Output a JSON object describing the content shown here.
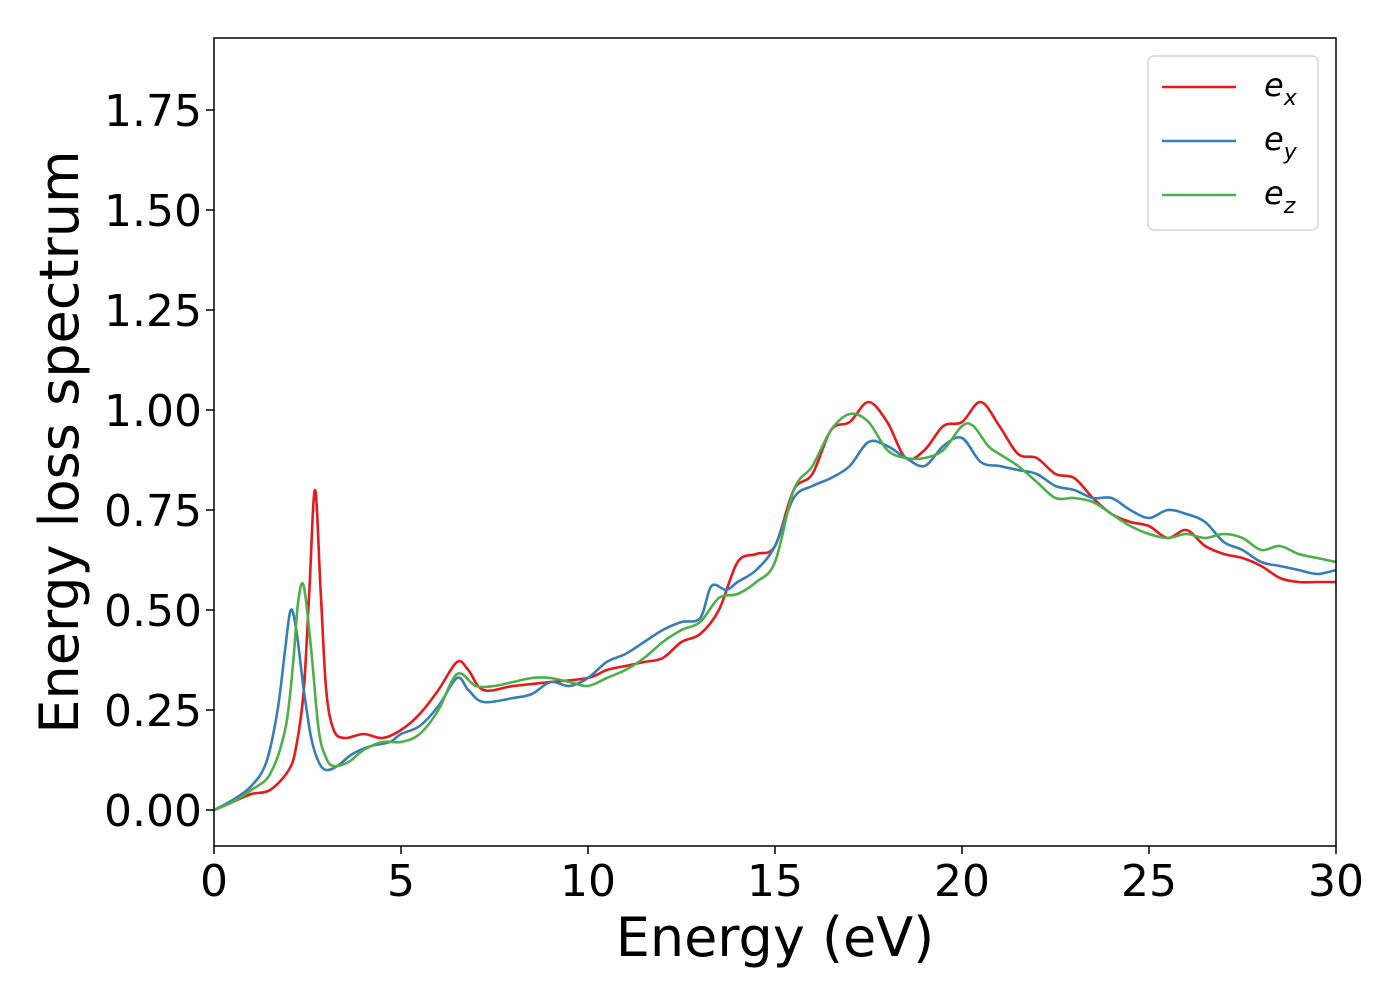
{
  "chart_data": {
    "type": "line",
    "title": "",
    "xlabel": "Energy (eV)",
    "ylabel": "Energy loss spectrum",
    "xlim": [
      0,
      30
    ],
    "ylim": [
      -0.09,
      1.93
    ],
    "xticks": [
      0,
      5,
      10,
      15,
      20,
      25,
      30
    ],
    "xtick_labels": [
      "0",
      "5",
      "10",
      "15",
      "20",
      "25",
      "30"
    ],
    "yticks": [
      0.0,
      0.25,
      0.5,
      0.75,
      1.0,
      1.25,
      1.5,
      1.75
    ],
    "ytick_labels": [
      "0.00",
      "0.25",
      "0.50",
      "0.75",
      "1.00",
      "1.25",
      "1.50",
      "1.75"
    ],
    "grid": false,
    "legend_position": "top-right",
    "series": [
      {
        "name": "e_x",
        "legend_base": "e",
        "legend_sub": "x",
        "color": "#e41a1c",
        "x": [
          0,
          0.5,
          1.0,
          1.5,
          2.0,
          2.2,
          2.4,
          2.55,
          2.7,
          2.85,
          3.0,
          3.2,
          3.5,
          4.0,
          4.5,
          5.0,
          5.5,
          6.0,
          6.5,
          6.8,
          7.2,
          8.0,
          9.0,
          10.0,
          10.5,
          11.0,
          11.5,
          12.0,
          12.5,
          13.0,
          13.5,
          14.0,
          14.5,
          15.0,
          15.5,
          16.0,
          16.5,
          17.0,
          17.5,
          18.0,
          18.5,
          19.0,
          19.5,
          20.0,
          20.5,
          21.0,
          21.5,
          22.0,
          22.5,
          23.0,
          23.5,
          24.0,
          24.5,
          25.0,
          25.5,
          26.0,
          26.5,
          27.0,
          27.5,
          28.0,
          28.5,
          29.0,
          29.5,
          30.0
        ],
        "y": [
          0.0,
          0.02,
          0.04,
          0.05,
          0.1,
          0.16,
          0.3,
          0.55,
          0.8,
          0.55,
          0.3,
          0.2,
          0.18,
          0.19,
          0.18,
          0.2,
          0.24,
          0.3,
          0.37,
          0.35,
          0.3,
          0.31,
          0.32,
          0.33,
          0.35,
          0.36,
          0.37,
          0.38,
          0.42,
          0.44,
          0.5,
          0.62,
          0.64,
          0.66,
          0.8,
          0.84,
          0.95,
          0.97,
          1.02,
          0.97,
          0.88,
          0.9,
          0.96,
          0.97,
          1.02,
          0.96,
          0.89,
          0.88,
          0.84,
          0.83,
          0.78,
          0.74,
          0.72,
          0.71,
          0.68,
          0.7,
          0.66,
          0.64,
          0.63,
          0.61,
          0.58,
          0.57,
          0.57,
          0.57
        ]
      },
      {
        "name": "e_y",
        "legend_base": "e",
        "legend_sub": "y",
        "color": "#377eb8",
        "x": [
          0,
          0.5,
          1.0,
          1.4,
          1.7,
          1.9,
          2.05,
          2.2,
          2.4,
          2.6,
          2.8,
          3.0,
          3.3,
          3.7,
          4.2,
          4.7,
          5.0,
          5.5,
          6.0,
          6.5,
          6.8,
          7.2,
          8.0,
          8.5,
          9.0,
          9.5,
          10.0,
          10.5,
          11.0,
          11.5,
          12.0,
          12.5,
          13.0,
          13.3,
          13.7,
          14.0,
          14.5,
          15.0,
          15.5,
          16.0,
          16.5,
          17.0,
          17.5,
          18.0,
          18.5,
          19.0,
          19.5,
          20.0,
          20.5,
          21.0,
          21.5,
          22.0,
          22.5,
          23.0,
          23.5,
          24.0,
          24.5,
          25.0,
          25.5,
          26.0,
          26.5,
          27.0,
          27.5,
          28.0,
          28.5,
          29.0,
          29.5,
          30.0
        ],
        "y": [
          0.0,
          0.025,
          0.06,
          0.12,
          0.25,
          0.4,
          0.5,
          0.45,
          0.3,
          0.18,
          0.12,
          0.1,
          0.11,
          0.14,
          0.16,
          0.17,
          0.19,
          0.21,
          0.26,
          0.33,
          0.3,
          0.27,
          0.28,
          0.29,
          0.32,
          0.31,
          0.33,
          0.37,
          0.39,
          0.42,
          0.45,
          0.47,
          0.48,
          0.56,
          0.55,
          0.57,
          0.6,
          0.66,
          0.78,
          0.81,
          0.83,
          0.86,
          0.92,
          0.91,
          0.88,
          0.86,
          0.91,
          0.93,
          0.87,
          0.86,
          0.85,
          0.84,
          0.81,
          0.8,
          0.78,
          0.78,
          0.75,
          0.73,
          0.75,
          0.74,
          0.72,
          0.67,
          0.65,
          0.62,
          0.61,
          0.6,
          0.59,
          0.6
        ]
      },
      {
        "name": "e_z",
        "legend_base": "e",
        "legend_sub": "z",
        "color": "#4daf4a",
        "x": [
          0,
          0.5,
          1.0,
          1.5,
          1.9,
          2.1,
          2.25,
          2.4,
          2.6,
          2.8,
          3.0,
          3.2,
          3.6,
          4.0,
          4.5,
          5.0,
          5.5,
          6.0,
          6.5,
          7.0,
          7.5,
          8.0,
          8.5,
          9.0,
          9.5,
          10.0,
          10.5,
          11.0,
          11.5,
          12.0,
          12.5,
          13.0,
          13.5,
          14.0,
          14.5,
          15.0,
          15.5,
          16.0,
          16.5,
          17.0,
          17.5,
          18.0,
          18.5,
          19.0,
          19.5,
          20.0,
          20.3,
          20.7,
          21.0,
          21.5,
          22.0,
          22.5,
          23.0,
          23.5,
          24.0,
          24.5,
          25.0,
          25.5,
          26.0,
          26.5,
          27.0,
          27.5,
          28.0,
          28.5,
          29.0,
          29.5,
          30.0
        ],
        "y": [
          0.0,
          0.02,
          0.05,
          0.09,
          0.2,
          0.35,
          0.52,
          0.56,
          0.4,
          0.2,
          0.13,
          0.11,
          0.12,
          0.15,
          0.17,
          0.17,
          0.19,
          0.25,
          0.34,
          0.31,
          0.31,
          0.32,
          0.33,
          0.33,
          0.32,
          0.31,
          0.33,
          0.35,
          0.38,
          0.42,
          0.45,
          0.47,
          0.53,
          0.54,
          0.57,
          0.62,
          0.8,
          0.86,
          0.95,
          0.99,
          0.97,
          0.9,
          0.88,
          0.88,
          0.9,
          0.96,
          0.96,
          0.91,
          0.89,
          0.86,
          0.82,
          0.78,
          0.78,
          0.77,
          0.74,
          0.71,
          0.69,
          0.68,
          0.69,
          0.68,
          0.69,
          0.68,
          0.65,
          0.66,
          0.64,
          0.63,
          0.62
        ]
      }
    ]
  }
}
